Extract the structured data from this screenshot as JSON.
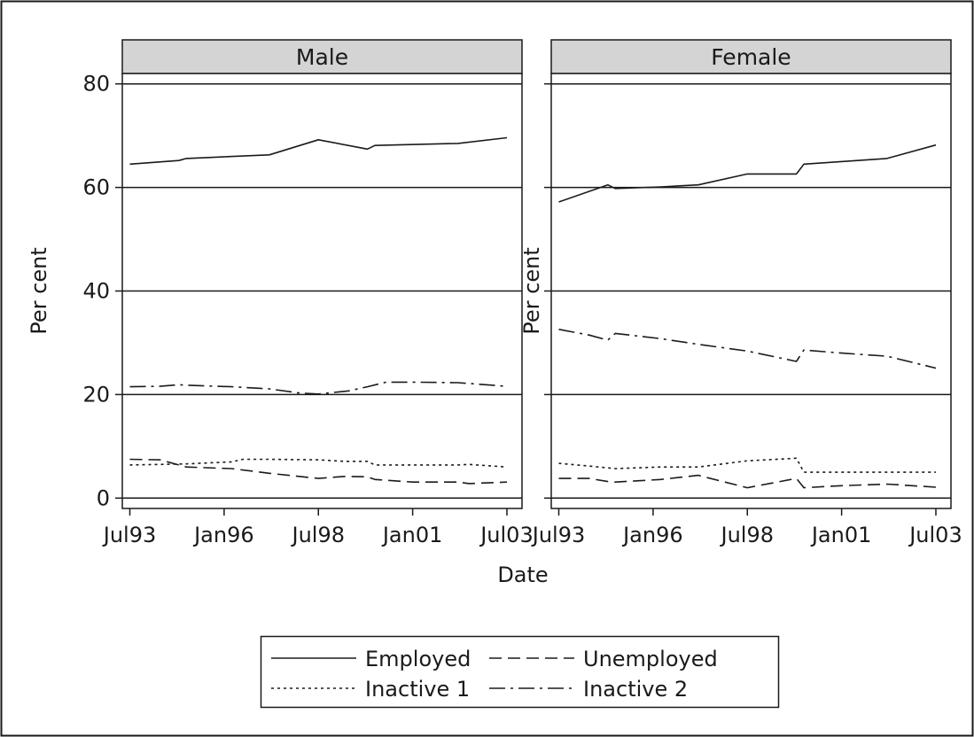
{
  "chart_data": {
    "type": "line",
    "xlabel": "Date",
    "x_tick_labels": [
      "Jul93",
      "Jan96",
      "Jul98",
      "Jan01",
      "Jul03"
    ],
    "x_tick_values": [
      1993.5,
      1996.0,
      1998.5,
      2001.0,
      2003.5
    ],
    "xlim": [
      1993.3,
      2003.9
    ],
    "ylim": [
      -2,
      82
    ],
    "y_ticks": [
      0,
      20,
      40,
      60,
      80
    ],
    "grid": "horizontal",
    "legend_position": "bottom",
    "legend": [
      {
        "label": "Employed",
        "dash": "solid"
      },
      {
        "label": "Unemployed",
        "dash": "dashed"
      },
      {
        "label": "Inactive 1",
        "dash": "dotted"
      },
      {
        "label": "Inactive 2",
        "dash": "dashdot"
      }
    ],
    "panels": [
      {
        "title": "Male",
        "ylabel": "Per cent",
        "series": [
          {
            "name": "Employed",
            "x": [
              1993.5,
              1994.8,
              1995.0,
              1997.2,
              1998.5,
              1999.8,
              2000.0,
              2002.2,
              2003.5
            ],
            "y": [
              64.5,
              65.2,
              65.6,
              66.3,
              69.2,
              67.4,
              68.1,
              68.5,
              69.6
            ]
          },
          {
            "name": "Unemployed",
            "x": [
              1993.5,
              1994.3,
              1995.0,
              1996.2,
              1997.2,
              1998.5,
              1999.2,
              1999.8,
              2000.0,
              2001.0,
              2002.2,
              2002.5,
              2003.5
            ],
            "y": [
              7.5,
              7.4,
              6.0,
              5.7,
              4.8,
              3.8,
              4.2,
              4.1,
              3.6,
              3.1,
              3.1,
              2.8,
              3.1
            ]
          },
          {
            "name": "Inactive 1",
            "x": [
              1993.5,
              1994.3,
              1995.0,
              1996.2,
              1996.5,
              1997.2,
              1998.5,
              1999.2,
              1999.8,
              2000.0,
              2002.2,
              2002.5,
              2003.5
            ],
            "y": [
              6.4,
              6.5,
              6.6,
              7.0,
              7.5,
              7.5,
              7.4,
              7.1,
              7.1,
              6.4,
              6.4,
              6.5,
              6.0
            ]
          },
          {
            "name": "Inactive 2",
            "x": [
              1993.5,
              1994.3,
              1994.8,
              1995.0,
              1996.2,
              1997.2,
              1998.0,
              1998.5,
              1999.3,
              1999.8,
              2000.3,
              2001.0,
              2002.2,
              2003.5
            ],
            "y": [
              21.5,
              21.6,
              21.9,
              21.8,
              21.5,
              21.1,
              20.3,
              20.1,
              20.7,
              21.5,
              22.4,
              22.4,
              22.3,
              21.6
            ]
          }
        ]
      },
      {
        "title": "Female",
        "ylabel": "Per cent",
        "series": [
          {
            "name": "Employed",
            "x": [
              1993.5,
              1994.8,
              1995.0,
              1996.2,
              1997.2,
              1998.5,
              1999.8,
              2000.0,
              2002.2,
              2003.5
            ],
            "y": [
              57.2,
              60.5,
              59.8,
              60.1,
              60.5,
              62.6,
              62.6,
              64.5,
              65.6,
              68.2
            ]
          },
          {
            "name": "Unemployed",
            "x": [
              1993.5,
              1994.3,
              1994.8,
              1995.0,
              1996.2,
              1997.2,
              1998.5,
              1999.8,
              2000.0,
              2001.0,
              2002.2,
              2003.5
            ],
            "y": [
              3.8,
              3.8,
              3.2,
              3.1,
              3.6,
              4.4,
              2.0,
              3.8,
              2.0,
              2.4,
              2.7,
              2.1
            ]
          },
          {
            "name": "Inactive 1",
            "x": [
              1993.5,
              1994.3,
              1995.0,
              1996.2,
              1997.2,
              1998.5,
              1999.8,
              2000.0,
              2002.2,
              2003.5
            ],
            "y": [
              6.7,
              6.2,
              5.7,
              6.0,
              6.0,
              7.2,
              7.7,
              5.0,
              5.0,
              5.0
            ]
          },
          {
            "name": "Inactive 2",
            "x": [
              1993.5,
              1994.3,
              1994.8,
              1995.0,
              1996.2,
              1997.2,
              1998.5,
              1999.8,
              2000.0,
              2001.0,
              2002.2,
              2003.5
            ],
            "y": [
              32.6,
              31.5,
              30.5,
              31.8,
              30.8,
              29.7,
              28.4,
              26.4,
              28.6,
              28.0,
              27.4,
              25.1
            ]
          }
        ]
      }
    ]
  }
}
